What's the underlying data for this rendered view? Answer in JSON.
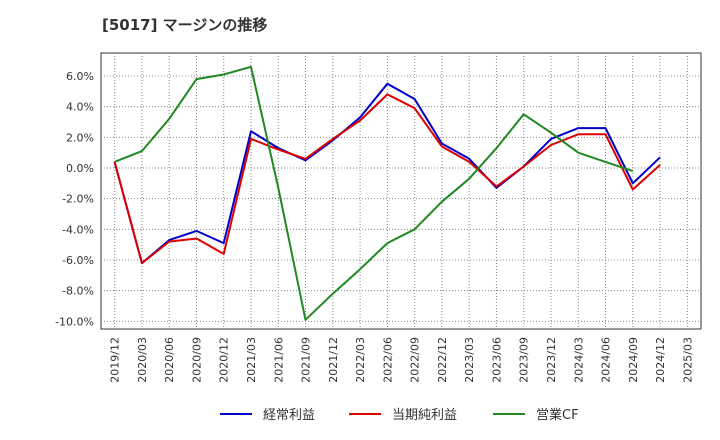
{
  "chart_data": {
    "type": "line",
    "title": "[5017]  マージンの推移",
    "x": [
      "2019/12",
      "2020/03",
      "2020/06",
      "2020/09",
      "2020/12",
      "2021/03",
      "2021/06",
      "2021/09",
      "2021/12",
      "2022/03",
      "2022/06",
      "2022/09",
      "2022/12",
      "2023/03",
      "2023/06",
      "2023/09",
      "2023/12",
      "2024/03",
      "2024/06",
      "2024/09",
      "2024/12"
    ],
    "x_ticks": [
      "2019/12",
      "2020/03",
      "2020/06",
      "2020/09",
      "2020/12",
      "2021/03",
      "2021/06",
      "2021/09",
      "2021/12",
      "2022/03",
      "2022/06",
      "2022/09",
      "2022/12",
      "2023/03",
      "2023/06",
      "2023/09",
      "2023/12",
      "2024/03",
      "2024/06",
      "2024/09",
      "2024/12",
      "2025/03"
    ],
    "y_ticks": [
      "6.0%",
      "4.0%",
      "2.0%",
      "0.0%",
      "-2.0%",
      "-4.0%",
      "-6.0%",
      "-8.0%",
      "-10.0%"
    ],
    "ylim": [
      -10.5,
      7.5
    ],
    "grid": true,
    "legend_position": "bottom",
    "series": [
      {
        "name": "経常利益",
        "color": "#0000cc",
        "values": [
          0.4,
          -6.2,
          -4.7,
          -4.1,
          -4.9,
          2.4,
          1.3,
          0.5,
          1.8,
          3.3,
          5.5,
          4.5,
          1.6,
          0.6,
          -1.3,
          0.1,
          1.9,
          2.6,
          2.6,
          -1.0,
          0.7
        ]
      },
      {
        "name": "当期純利益",
        "color": "#dd0000",
        "values": [
          0.4,
          -6.2,
          -4.8,
          -4.6,
          -5.6,
          1.9,
          1.2,
          0.6,
          1.9,
          3.1,
          4.8,
          3.9,
          1.4,
          0.4,
          -1.2,
          0.1,
          1.5,
          2.2,
          2.2,
          -1.4,
          0.2
        ]
      },
      {
        "name": "営業CF",
        "color": "#228822",
        "values": [
          0.4,
          1.1,
          3.2,
          5.8,
          6.1,
          6.6,
          -1.3,
          -9.9,
          -8.2,
          -6.6,
          -4.9,
          -4.0,
          -2.2,
          -0.7,
          1.3,
          3.5,
          2.3,
          1.0,
          0.4,
          -0.2,
          null
        ]
      }
    ]
  }
}
